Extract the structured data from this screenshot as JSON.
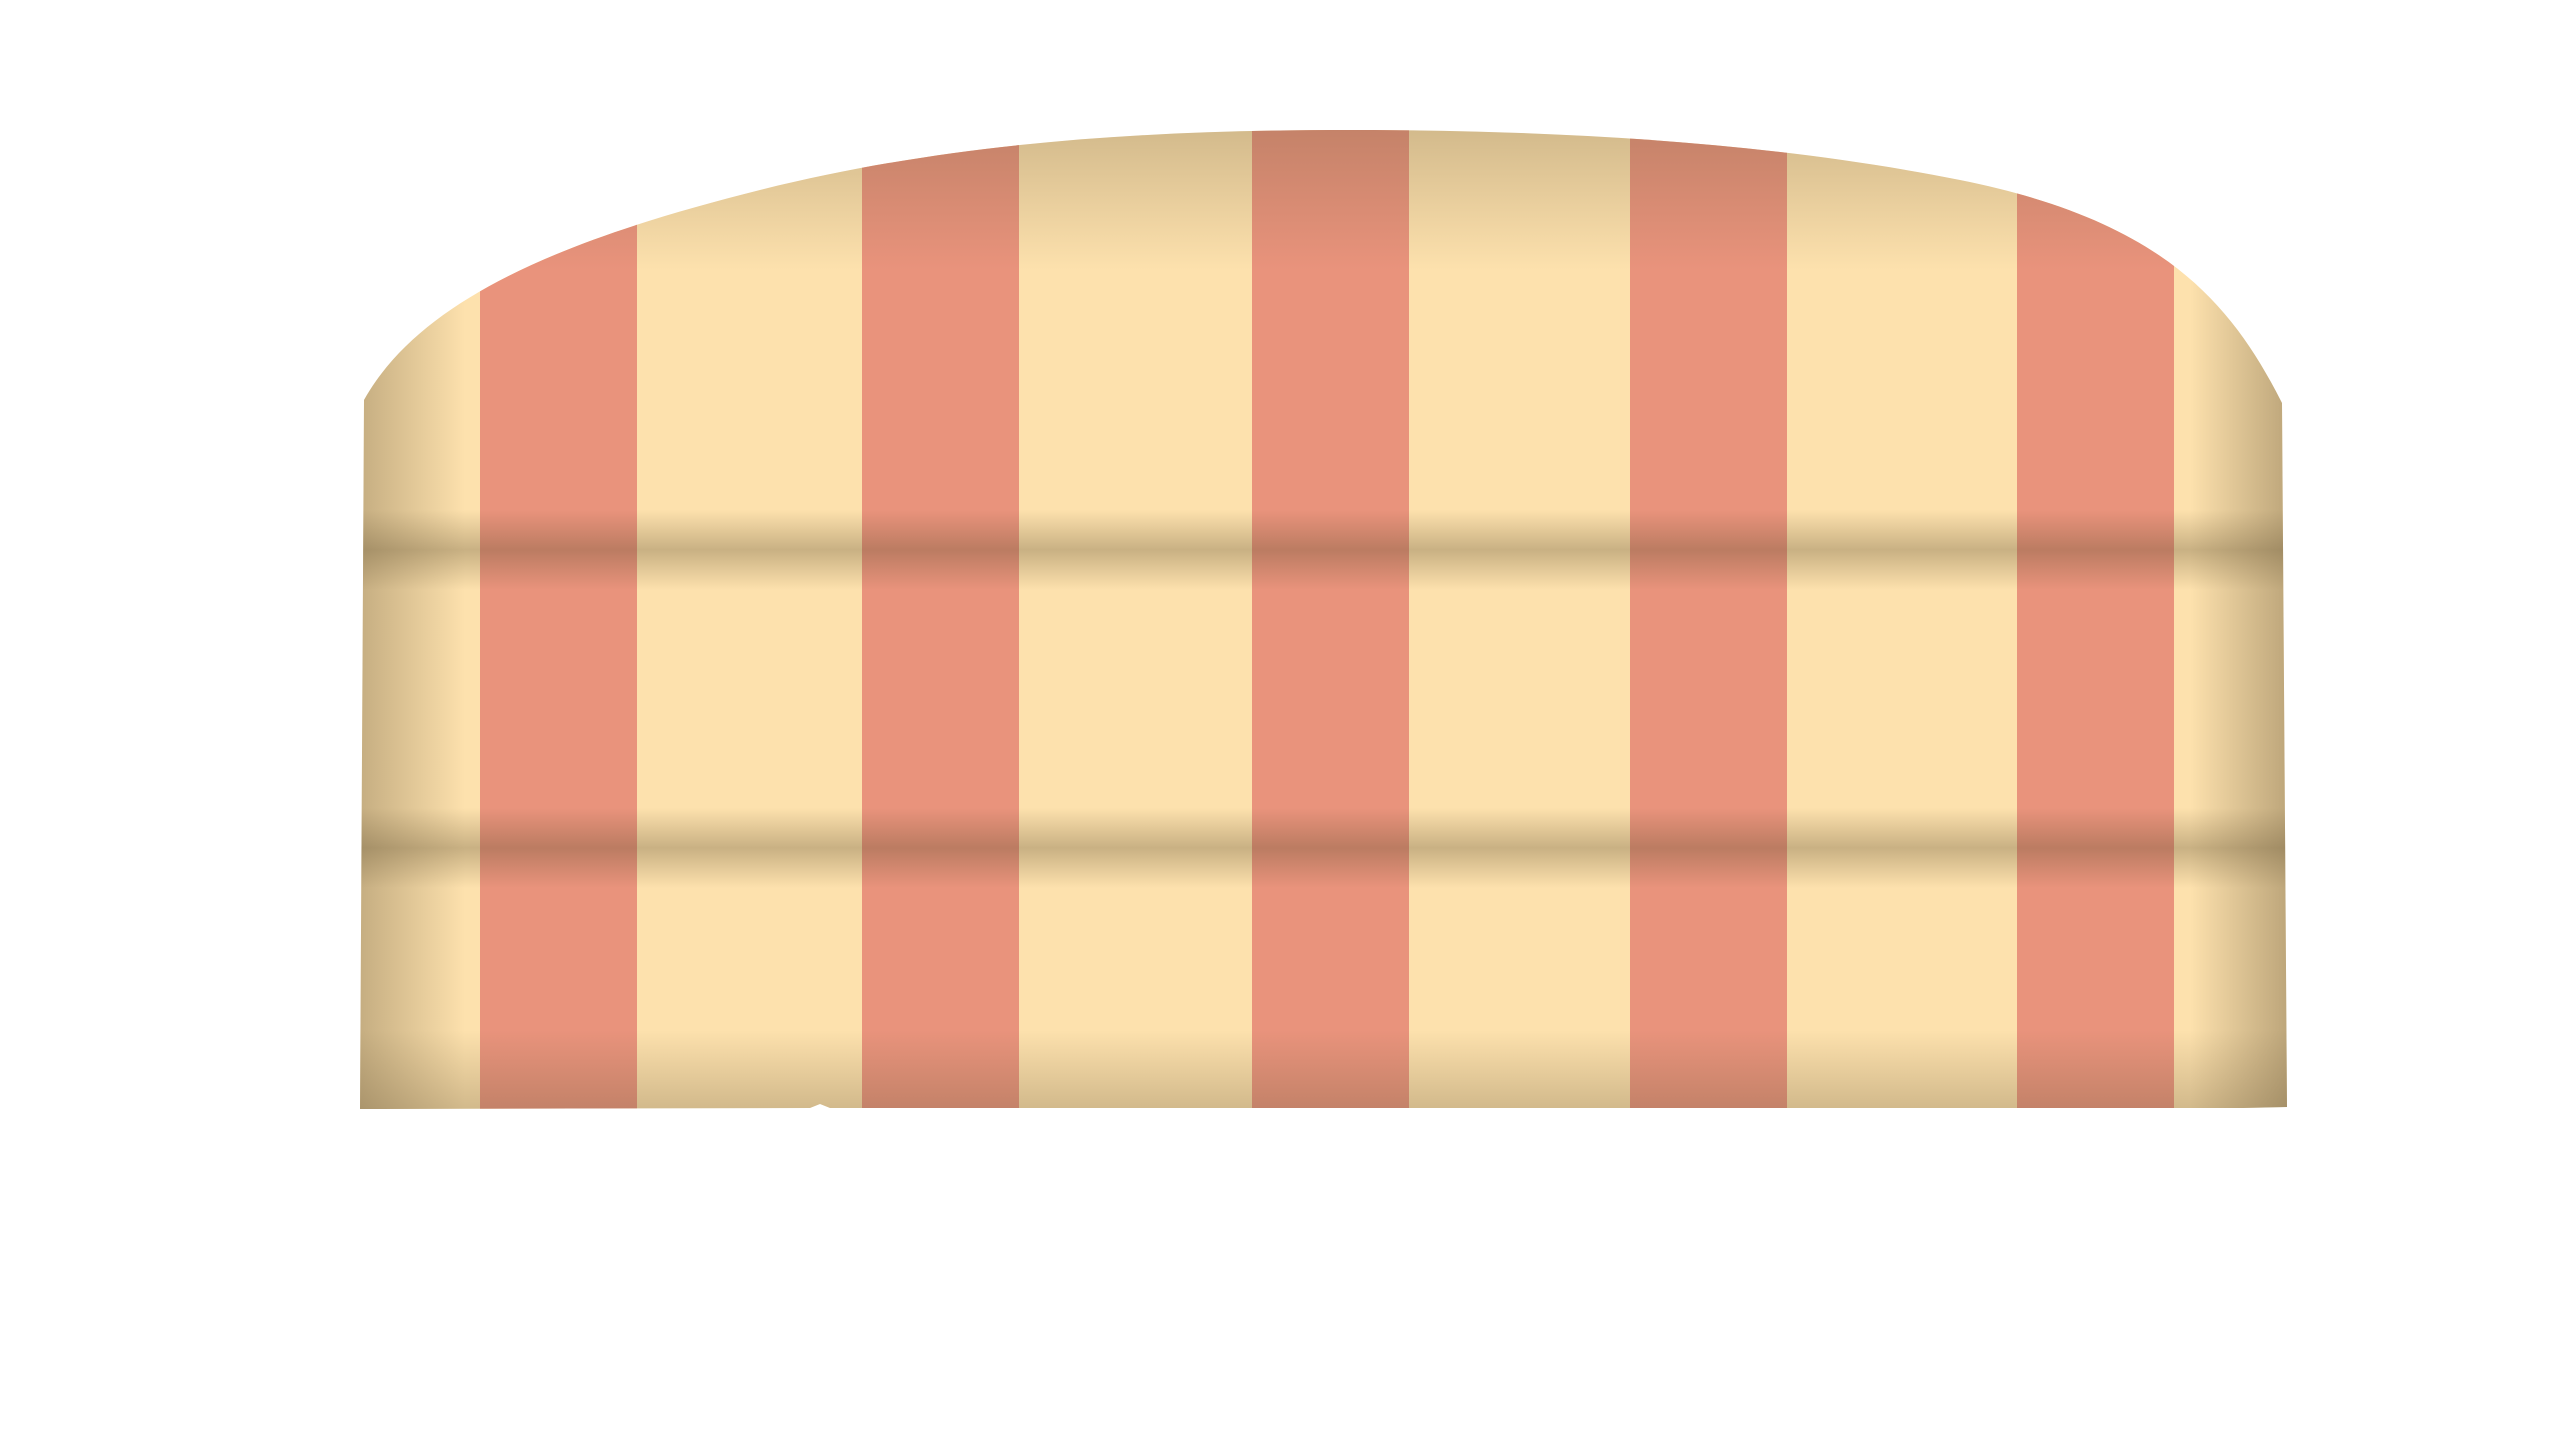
{
  "object": {
    "kind": "striped headboard",
    "stripe_count": 5,
    "colors": {
      "background": "#ffffff",
      "cream": "#fde1ad",
      "salmon": "#e9937c",
      "tuft_shadow": "#5a4a2a",
      "edge_shadow": "#6b5a3a"
    }
  }
}
